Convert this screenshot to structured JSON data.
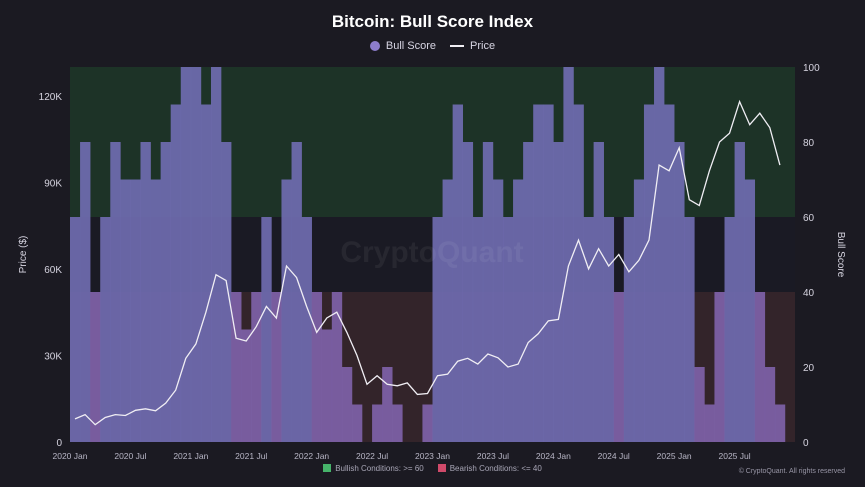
{
  "chart_data": {
    "type": "line",
    "title": "Bitcoin: Bull Score Index",
    "watermark": "CryptoQuant",
    "copyright": "© CryptoQuant. All rights reserved",
    "legend": [
      {
        "name": "Bull Score",
        "color": "#8d7dcc",
        "shape": "dot"
      },
      {
        "name": "Price",
        "color": "#f0eef4",
        "shape": "line"
      }
    ],
    "zones_legend": [
      {
        "label": "Bullish Conditions: >= 60",
        "color": "#46b36a"
      },
      {
        "label": "Bearish Conditions: <= 40",
        "color": "#d04a6a"
      }
    ],
    "y_left": {
      "label": "Price ($)",
      "range": [
        0,
        130000
      ],
      "ticks": [
        0,
        30000,
        60000,
        90000,
        120000
      ],
      "tick_labels": [
        "0",
        "30K",
        "60K",
        "90K",
        "120K"
      ]
    },
    "y_right": {
      "label": "Bull Score",
      "range": [
        0,
        100
      ],
      "ticks": [
        0,
        20,
        40,
        60,
        80,
        100
      ]
    },
    "x_axis": {
      "range": [
        "2020-01",
        "2025-12"
      ],
      "ticks": [
        "2020 Jan",
        "2020 Jul",
        "2021 Jan",
        "2021 Jul",
        "2022 Jan",
        "2022 Jul",
        "2023 Jan",
        "2023 Jul",
        "2024 Jan",
        "2024 Jul",
        "2025 Jan",
        "2025 Jul"
      ]
    },
    "bull_score": {
      "dates": [
        "2020-01",
        "2020-02",
        "2020-03",
        "2020-04",
        "2020-05",
        "2020-06",
        "2020-07",
        "2020-08",
        "2020-09",
        "2020-10",
        "2020-11",
        "2020-12",
        "2021-01",
        "2021-02",
        "2021-03",
        "2021-04",
        "2021-05",
        "2021-06",
        "2021-07",
        "2021-08",
        "2021-09",
        "2021-10",
        "2021-11",
        "2021-12",
        "2022-01",
        "2022-02",
        "2022-03",
        "2022-04",
        "2022-05",
        "2022-06",
        "2022-07",
        "2022-08",
        "2022-09",
        "2022-10",
        "2022-11",
        "2022-12",
        "2023-01",
        "2023-02",
        "2023-03",
        "2023-04",
        "2023-05",
        "2023-06",
        "2023-07",
        "2023-08",
        "2023-09",
        "2023-10",
        "2023-11",
        "2023-12",
        "2024-01",
        "2024-02",
        "2024-03",
        "2024-04",
        "2024-05",
        "2024-06",
        "2024-07",
        "2024-08",
        "2024-09",
        "2024-10",
        "2024-11",
        "2024-12",
        "2025-01",
        "2025-02",
        "2025-03",
        "2025-04",
        "2025-05",
        "2025-06",
        "2025-07",
        "2025-08",
        "2025-09",
        "2025-10",
        "2025-11"
      ],
      "values": [
        60,
        80,
        40,
        60,
        80,
        70,
        70,
        80,
        70,
        80,
        90,
        100,
        100,
        90,
        100,
        80,
        40,
        30,
        40,
        60,
        40,
        70,
        80,
        60,
        40,
        30,
        40,
        20,
        10,
        0,
        10,
        20,
        10,
        0,
        0,
        10,
        60,
        70,
        90,
        80,
        60,
        80,
        70,
        60,
        70,
        80,
        90,
        90,
        80,
        100,
        90,
        60,
        80,
        60,
        40,
        60,
        70,
        90,
        100,
        90,
        80,
        60,
        20,
        10,
        40,
        60,
        80,
        70,
        40,
        20,
        10
      ]
    },
    "price": {
      "dates": [
        "2020-01",
        "2020-02",
        "2020-03",
        "2020-04",
        "2020-05",
        "2020-06",
        "2020-07",
        "2020-08",
        "2020-09",
        "2020-10",
        "2020-11",
        "2020-12",
        "2021-01",
        "2021-02",
        "2021-03",
        "2021-04",
        "2021-05",
        "2021-06",
        "2021-07",
        "2021-08",
        "2021-09",
        "2021-10",
        "2021-11",
        "2021-12",
        "2022-01",
        "2022-02",
        "2022-03",
        "2022-04",
        "2022-05",
        "2022-06",
        "2022-07",
        "2022-08",
        "2022-09",
        "2022-10",
        "2022-11",
        "2022-12",
        "2023-01",
        "2023-02",
        "2023-03",
        "2023-04",
        "2023-05",
        "2023-06",
        "2023-07",
        "2023-08",
        "2023-09",
        "2023-10",
        "2023-11",
        "2023-12",
        "2024-01",
        "2024-02",
        "2024-03",
        "2024-04",
        "2024-05",
        "2024-06",
        "2024-07",
        "2024-08",
        "2024-09",
        "2024-10",
        "2024-11",
        "2024-12",
        "2025-01",
        "2025-02",
        "2025-03",
        "2025-04",
        "2025-05",
        "2025-06",
        "2025-07",
        "2025-08",
        "2025-09",
        "2025-10",
        "2025-11"
      ],
      "values": [
        8000,
        9500,
        6000,
        8500,
        9500,
        9200,
        11000,
        11500,
        10800,
        13500,
        18000,
        29000,
        34000,
        45000,
        58000,
        56000,
        36000,
        35000,
        40000,
        47000,
        43000,
        61000,
        57000,
        47000,
        38000,
        43000,
        45000,
        38000,
        30000,
        20000,
        23000,
        20000,
        19500,
        20500,
        16500,
        16800,
        23000,
        23500,
        28000,
        29000,
        27000,
        30500,
        29200,
        26000,
        27000,
        34500,
        37500,
        42000,
        42500,
        61000,
        70000,
        60000,
        67000,
        61000,
        65000,
        59000,
        63000,
        70000,
        96000,
        94000,
        102000,
        84000,
        82000,
        94000,
        104000,
        107000,
        118000,
        110000,
        114000,
        109000,
        96000
      ]
    }
  }
}
